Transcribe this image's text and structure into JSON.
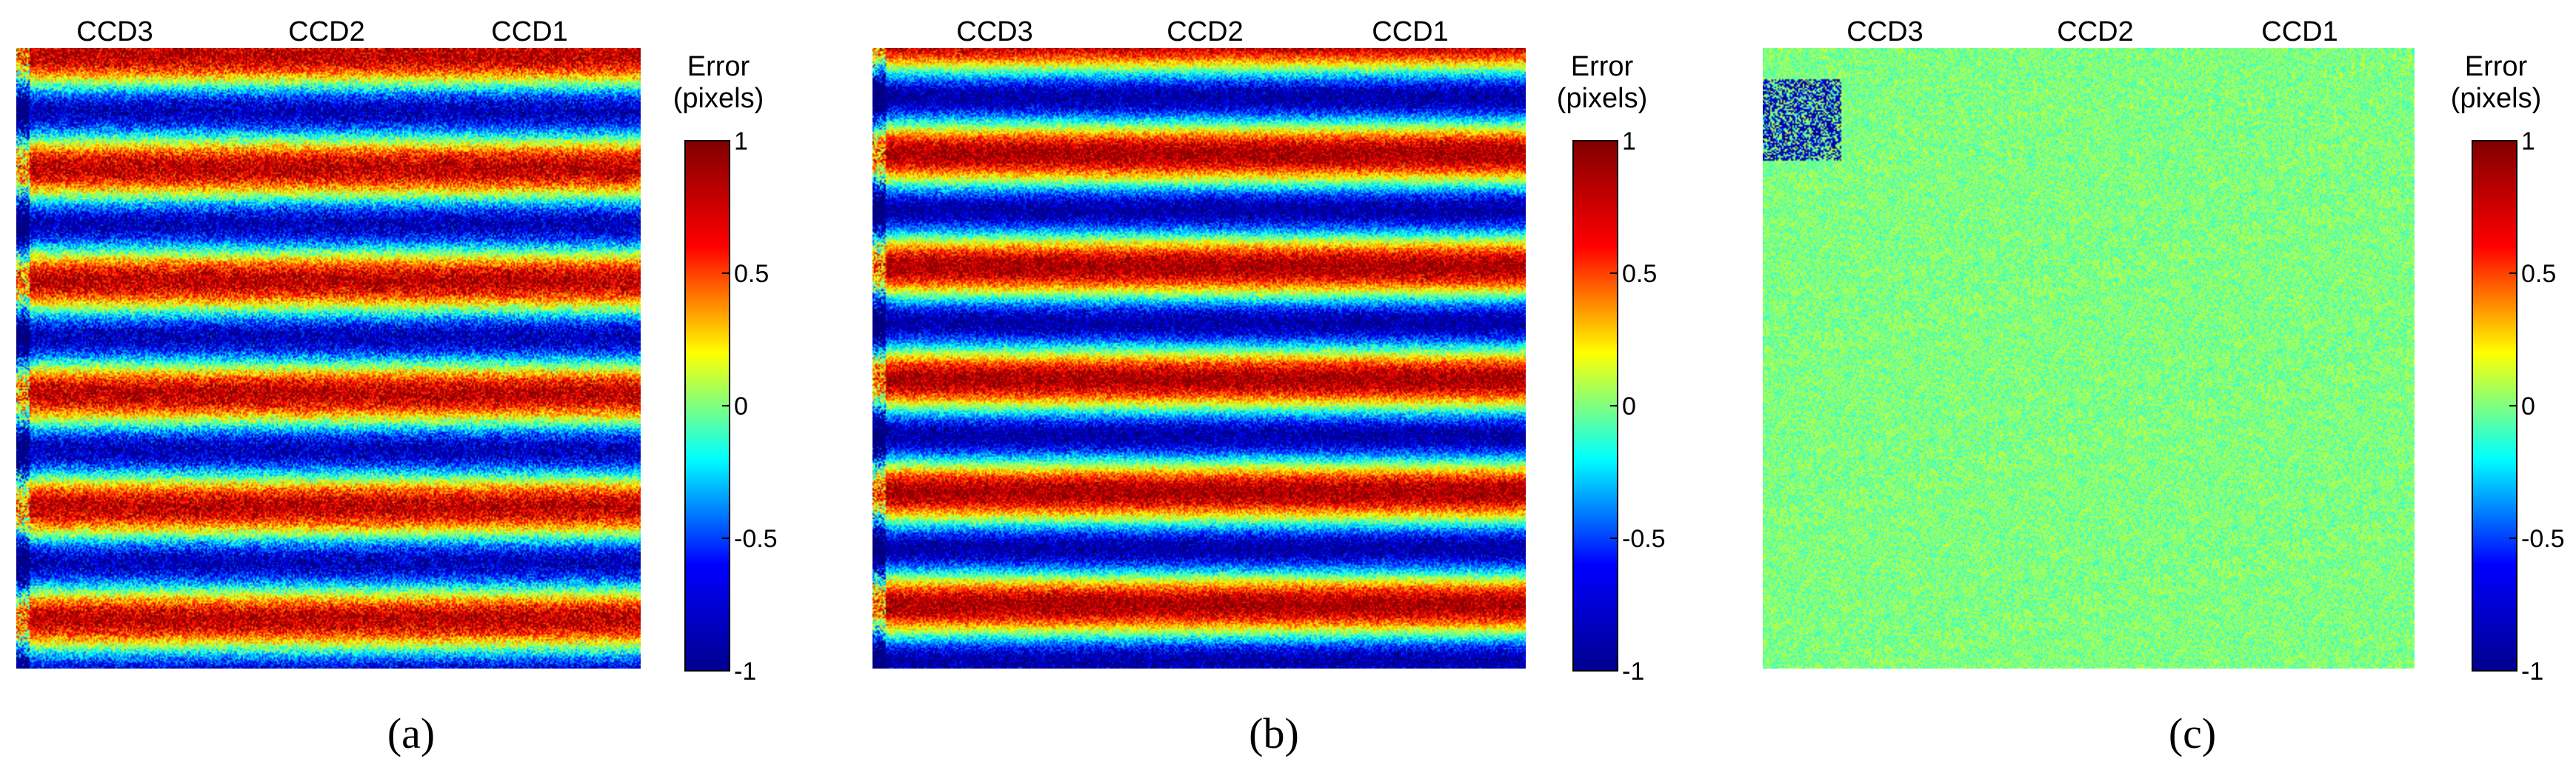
{
  "figure": {
    "colormap": "jet",
    "colors": {
      "jet": [
        "#00008f",
        "#0000ff",
        "#00ffff",
        "#ffff00",
        "#ff0000",
        "#800000"
      ]
    }
  },
  "chart_data": [
    {
      "type": "heatmap",
      "panel_label": "(a)",
      "column_labels": [
        "CCD3",
        "CCD2",
        "CCD1"
      ],
      "colorbar": {
        "title": [
          "Error",
          "(pixels)"
        ],
        "ticks": [
          1,
          0.5,
          0,
          -0.5,
          -1
        ],
        "tick_labels": [
          "1",
          "0.5",
          "0",
          "-0.5",
          "-1"
        ],
        "range": [
          -1,
          1
        ]
      },
      "pattern": "horizontal sinusoidal error bands",
      "band_count": 5.5,
      "amplitude": 0.9,
      "noise": 0.35
    },
    {
      "type": "heatmap",
      "panel_label": "(b)",
      "column_labels": [
        "CCD3",
        "CCD2",
        "CCD1"
      ],
      "colorbar": {
        "title": [
          "Error",
          "(pixels)"
        ],
        "ticks": [
          1,
          0.5,
          0,
          -0.5,
          -1
        ],
        "tick_labels": [
          "1",
          "0.5",
          "0",
          "-0.5",
          "-1"
        ],
        "range": [
          -1,
          1
        ]
      },
      "pattern": "horizontal sinusoidal error bands",
      "band_count": 5.5,
      "amplitude": 0.95,
      "noise": 0.3
    },
    {
      "type": "heatmap",
      "panel_label": "(c)",
      "column_labels": [
        "CCD3",
        "CCD2",
        "CCD1"
      ],
      "colorbar": {
        "title": [
          "Error",
          "(pixels)"
        ],
        "ticks": [
          1,
          0.5,
          0,
          -0.5,
          -1
        ],
        "tick_labels": [
          "1",
          "0.5",
          "0",
          "-0.5",
          "-1"
        ],
        "range": [
          -1,
          1
        ]
      },
      "pattern": "near-zero error with noise",
      "band_count": 0,
      "amplitude": 0.0,
      "noise": 0.22
    }
  ]
}
